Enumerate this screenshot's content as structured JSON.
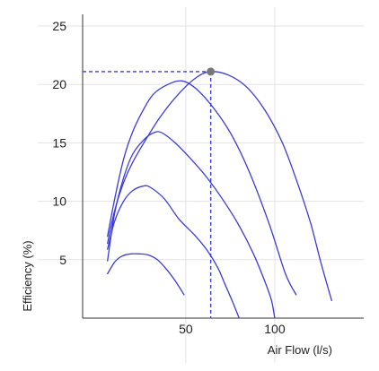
{
  "chart_data": {
    "type": "line",
    "title": "",
    "xlabel": "Air Flow (l/s)",
    "ylabel": "Efficiency (%)",
    "xlim": [
      -8,
      150
    ],
    "ylim": [
      0,
      26
    ],
    "x_ticks": [
      50,
      100
    ],
    "y_ticks": [
      5,
      10,
      15,
      20,
      25
    ],
    "grid": true,
    "line_color": "#3b3bd8",
    "marker_color": "#777777",
    "grid_color": "#e3e3e3",
    "series": [
      {
        "x": [
          6,
          10,
          14,
          19,
          24,
          29,
          34,
          39,
          44,
          49
        ],
        "y": [
          3.8,
          4.8,
          5.3,
          5.5,
          5.5,
          5.4,
          5.0,
          4.2,
          3.2,
          2.0
        ]
      },
      {
        "x": [
          6,
          10,
          15,
          20,
          26,
          30,
          38,
          46,
          55,
          62,
          68,
          72,
          76,
          80
        ],
        "y": [
          5.9,
          8.3,
          10.0,
          10.9,
          11.3,
          11.2,
          10.2,
          8.5,
          7.1,
          5.8,
          4.3,
          2.9,
          1.5,
          0.0
        ]
      },
      {
        "x": [
          6,
          10,
          15,
          20,
          26,
          31,
          36,
          44,
          53,
          62,
          71,
          80,
          88,
          94,
          98,
          100
        ],
        "y": [
          4.9,
          9.0,
          12.0,
          14.0,
          15.2,
          15.8,
          15.9,
          15.0,
          13.6,
          12.0,
          10.1,
          7.9,
          5.5,
          3.3,
          1.6,
          0.0
        ]
      },
      {
        "x": [
          6,
          10,
          15,
          20,
          26,
          32,
          40,
          48,
          56,
          66,
          76,
          86,
          97,
          106,
          112
        ],
        "y": [
          7.0,
          10.2,
          13.6,
          15.9,
          17.8,
          19.2,
          20.0,
          20.3,
          19.6,
          17.9,
          15.6,
          12.4,
          8.0,
          3.8,
          2.0
        ]
      },
      {
        "x": [
          6,
          10,
          15,
          20,
          28,
          36,
          46,
          56,
          64,
          74,
          84,
          94,
          104,
          112,
          120,
          126,
          132
        ],
        "y": [
          6.4,
          9.2,
          11.6,
          13.3,
          15.4,
          17.3,
          19.2,
          20.6,
          21.1,
          20.8,
          19.8,
          17.9,
          15.1,
          11.9,
          8.2,
          4.7,
          1.5
        ]
      }
    ],
    "highlight_point": {
      "x": 64,
      "y": 21.1
    }
  }
}
